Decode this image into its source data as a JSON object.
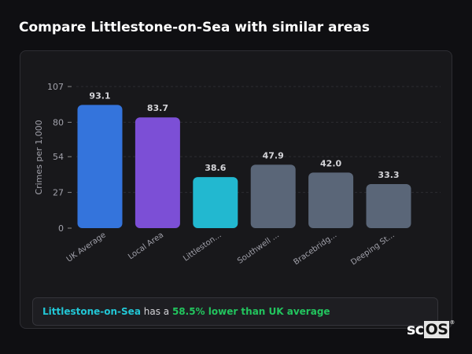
{
  "title": "Compare Littlestone-on-Sea with similar areas",
  "chart_data": {
    "type": "bar",
    "ylabel": "Crimes per 1,000",
    "xlabel": "",
    "ylim": [
      0,
      107
    ],
    "yticks": [
      0,
      27,
      54,
      80,
      107
    ],
    "grid": true,
    "categories": [
      "UK Average",
      "Local Area",
      "Littleston...",
      "Southwell ...",
      "Bracebridg...",
      "Deeping St..."
    ],
    "values": [
      93.1,
      83.7,
      38.6,
      47.9,
      42.0,
      33.3
    ],
    "value_labels": [
      "93.1",
      "83.7",
      "38.6",
      "47.9",
      "42.0",
      "33.3"
    ],
    "colors": [
      "#3474dc",
      "#7c4fd6",
      "#22b8d0",
      "#5a6678",
      "#5a6678",
      "#5a6678"
    ]
  },
  "summary": {
    "area": "Littlestone-on-Sea",
    "mid": " has a ",
    "pct": "58.5% lower than UK average"
  },
  "logo": {
    "sc": "sc",
    "os": "OS",
    "reg": "®"
  }
}
